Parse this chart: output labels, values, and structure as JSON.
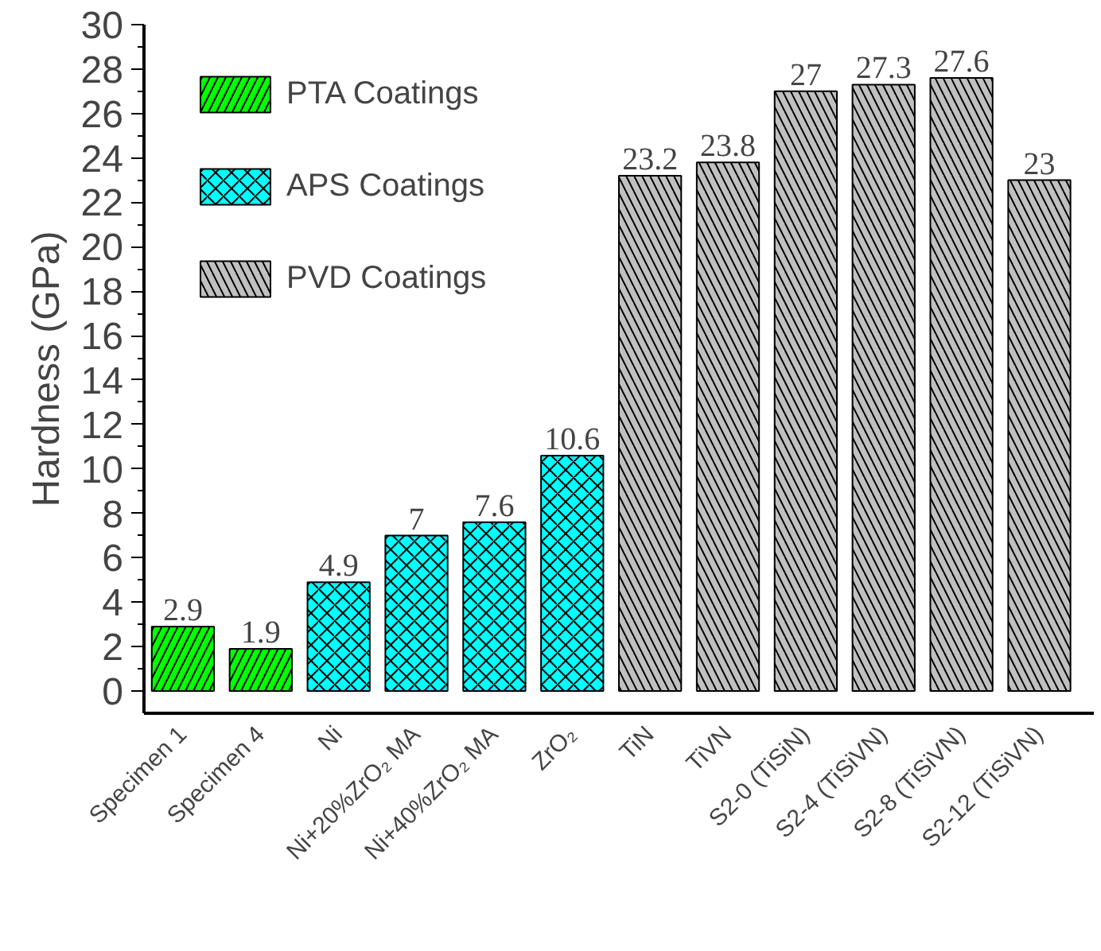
{
  "chart_data": {
    "type": "bar",
    "ylabel": "Hardness (GPa)",
    "categories": [
      "Specimen 1",
      "Specimen 4",
      "Ni",
      "Ni+20%ZrO₂ MA",
      "Ni+40%ZrO₂ MA",
      "ZrO₂",
      "TiN",
      "TiVN",
      "S2-0 (TiSiN)",
      "S2-4 (TiSiVN)",
      "S2-8 (TiSiVN)",
      "S2-12 (TiSiVN)"
    ],
    "series": [
      {
        "name": "PTA Coatings",
        "color": "#00ff00",
        "values": [
          2.9,
          1.9,
          null,
          null,
          null,
          null,
          null,
          null,
          null,
          null,
          null,
          null
        ]
      },
      {
        "name": "APS Coatings",
        "color": "#00ffff",
        "values": [
          null,
          null,
          4.9,
          7,
          7.6,
          10.6,
          null,
          null,
          null,
          null,
          null,
          null
        ]
      },
      {
        "name": "PVD Coatings",
        "color": "#c0c0c0",
        "values": [
          null,
          null,
          null,
          null,
          null,
          null,
          23.2,
          23.8,
          27,
          27.3,
          27.6,
          23
        ]
      }
    ],
    "ylim": [
      -1,
      30
    ],
    "yticks": [
      0,
      2,
      4,
      6,
      8,
      10,
      12,
      14,
      16,
      18,
      20,
      22,
      24,
      26,
      28,
      30
    ],
    "data_labels": true,
    "legend": "top left",
    "grid": false
  }
}
